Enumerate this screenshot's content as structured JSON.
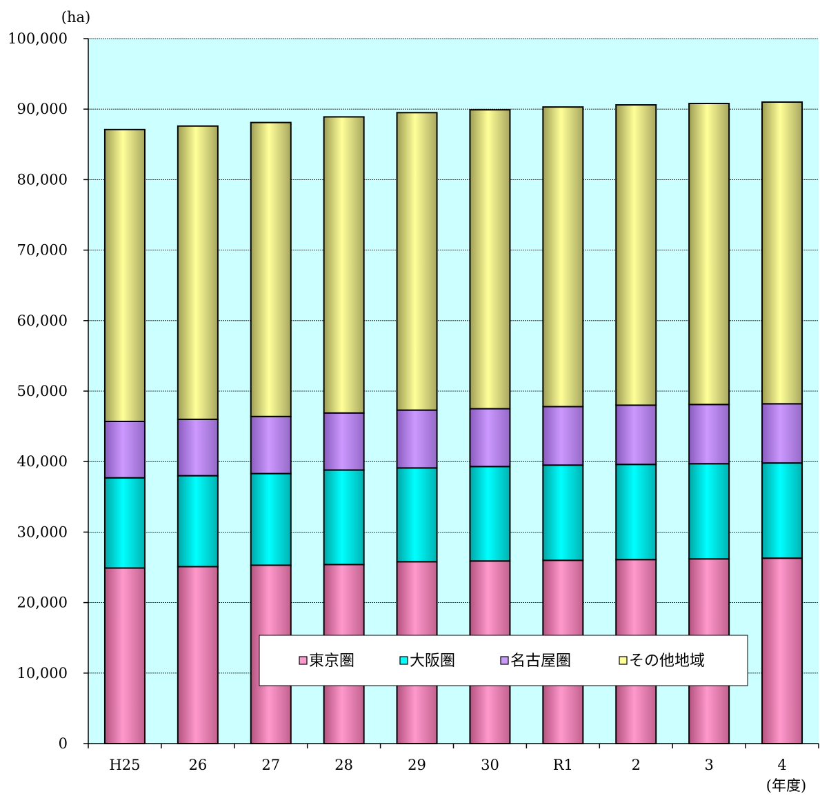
{
  "chart_data": {
    "type": "bar",
    "stacked": true,
    "y_unit_label": "(ha)",
    "x_unit_label": "(年度)",
    "categories": [
      "H25",
      "26",
      "27",
      "28",
      "29",
      "30",
      "R1",
      "2",
      "3",
      "4"
    ],
    "series": [
      {
        "name": "東京圏",
        "color": "#ff99cc",
        "values": [
          24900,
          25100,
          25300,
          25400,
          25800,
          25900,
          26000,
          26100,
          26200,
          26300
        ]
      },
      {
        "name": "大阪圏",
        "color": "#00ffff",
        "values": [
          12800,
          12900,
          13000,
          13400,
          13300,
          13400,
          13500,
          13500,
          13500,
          13500
        ]
      },
      {
        "name": "名古屋圏",
        "color": "#cc99ff",
        "values": [
          8000,
          8000,
          8100,
          8100,
          8200,
          8200,
          8300,
          8400,
          8400,
          8400
        ]
      },
      {
        "name": "その他地域",
        "color": "#ffff99",
        "values": [
          41400,
          41600,
          41700,
          42000,
          42200,
          42400,
          42500,
          42600,
          42700,
          42800
        ]
      }
    ],
    "ylim": [
      0,
      100000
    ],
    "yticks": [
      "0",
      "10,000",
      "20,000",
      "30,000",
      "40,000",
      "50,000",
      "60,000",
      "70,000",
      "80,000",
      "90,000",
      "100,000"
    ],
    "ytick_values": [
      0,
      10000,
      20000,
      30000,
      40000,
      50000,
      60000,
      70000,
      80000,
      90000,
      100000
    ],
    "grid": true,
    "legend_position": "bottom-center inside plot",
    "plot_background": "#ccffff"
  }
}
